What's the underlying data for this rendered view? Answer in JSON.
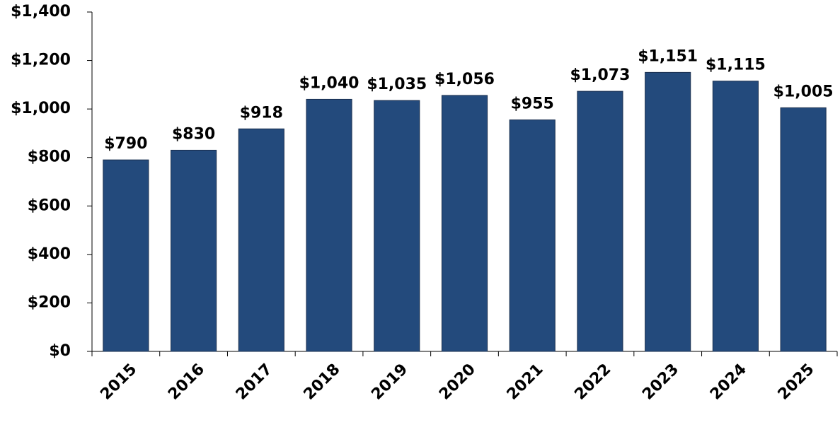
{
  "chart_data": {
    "type": "bar",
    "categories": [
      "2015",
      "2016",
      "2017",
      "2018",
      "2019",
      "2020",
      "2021",
      "2022",
      "2023",
      "2024",
      "2025"
    ],
    "values": [
      790,
      830,
      918,
      1040,
      1035,
      1056,
      955,
      1073,
      1151,
      1115,
      1005
    ],
    "value_labels": [
      "$790",
      "$830",
      "$918",
      "$1,040",
      "$1,035",
      "$1,056",
      "$955",
      "$1,073",
      "$1,151",
      "$1,115",
      "$1,005"
    ],
    "color": "#234a7c",
    "ylim": [
      0,
      1400
    ],
    "yticks": [
      {
        "value": 0,
        "label": "$0"
      },
      {
        "value": 200,
        "label": "$200"
      },
      {
        "value": 400,
        "label": "$400"
      },
      {
        "value": 600,
        "label": "$600"
      },
      {
        "value": 800,
        "label": "$800"
      },
      {
        "value": 1000,
        "label": "$1,000"
      },
      {
        "value": 1200,
        "label": "$1,200"
      },
      {
        "value": 1400,
        "label": "$1,400"
      }
    ],
    "grid": false
  }
}
